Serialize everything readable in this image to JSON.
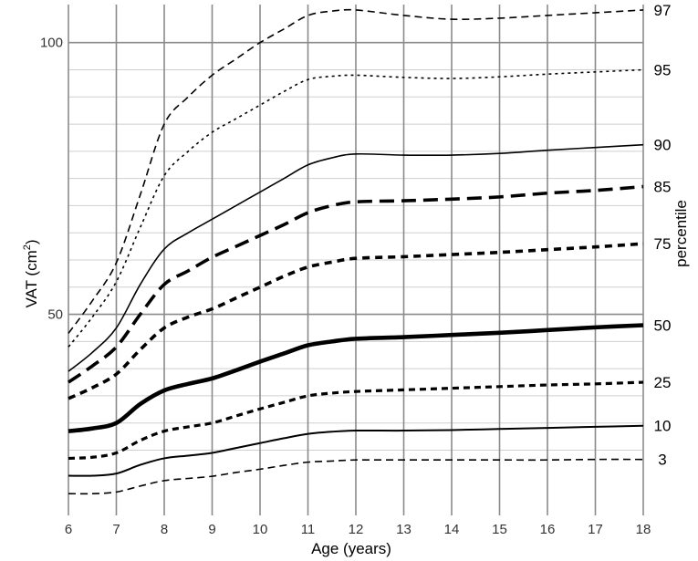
{
  "chart_data": {
    "type": "line",
    "xlabel": "Age (years)",
    "ylabel_main": "VAT (cm",
    "ylabel_sup": "2",
    "ylabel_close": ")",
    "right_label": "percentile",
    "xlim": [
      6,
      18
    ],
    "ylim": [
      13,
      107
    ],
    "xticks": [
      6,
      7,
      8,
      9,
      10,
      11,
      12,
      13,
      14,
      15,
      16,
      17,
      18
    ],
    "yticks": [
      50,
      100
    ],
    "y_minor_grid": [
      25,
      30,
      35,
      40,
      45,
      55,
      60,
      65,
      70,
      75,
      80,
      85,
      90,
      95
    ],
    "x": [
      6,
      6.5,
      7,
      7.5,
      8,
      8.5,
      9,
      9.5,
      10,
      10.5,
      11,
      11.5,
      12,
      13,
      14,
      15,
      16,
      17,
      18
    ],
    "series": [
      {
        "name": "97",
        "style": "dashed-thin",
        "values": [
          46.5,
          52.5,
          59.5,
          72,
          85,
          90,
          94,
          97,
          100,
          102.5,
          105,
          105.8,
          106,
          105,
          104.3,
          104.5,
          105,
          105.5,
          106
        ]
      },
      {
        "name": "95",
        "style": "dotted",
        "values": [
          44,
          49.5,
          56,
          66,
          75.5,
          80,
          83.5,
          86,
          88.5,
          91,
          93.2,
          93.8,
          94,
          93.6,
          93.4,
          93.7,
          94.2,
          94.6,
          95
        ]
      },
      {
        "name": "90",
        "style": "solid-thin",
        "values": [
          39.5,
          43,
          47.5,
          55.5,
          62,
          65,
          67.5,
          70,
          72.5,
          75,
          77.5,
          78.8,
          79.5,
          79.3,
          79.3,
          79.6,
          80.2,
          80.7,
          81.2
        ]
      },
      {
        "name": "85",
        "style": "longdash-bold",
        "values": [
          37.5,
          40.5,
          44,
          50,
          55.5,
          58,
          60.5,
          62.5,
          64.5,
          66.5,
          68.7,
          70,
          70.7,
          70.9,
          71.2,
          71.6,
          72.3,
          72.8,
          73.5
        ]
      },
      {
        "name": "75",
        "style": "dash-bold",
        "values": [
          34.5,
          36.5,
          39,
          43.5,
          47.5,
          49.5,
          51,
          53,
          55,
          57,
          58.7,
          59.6,
          60.3,
          60.6,
          61,
          61.4,
          61.9,
          62.4,
          63
        ]
      },
      {
        "name": "50",
        "style": "solid-bold",
        "values": [
          28.5,
          29,
          30,
          33.5,
          36,
          37.2,
          38.2,
          39.7,
          41.3,
          42.8,
          44.3,
          45,
          45.5,
          45.8,
          46.2,
          46.6,
          47.1,
          47.6,
          48
        ]
      },
      {
        "name": "25",
        "style": "dash-medium",
        "values": [
          23.5,
          23.7,
          24.5,
          26.8,
          28.5,
          29.3,
          30,
          31.3,
          32.6,
          33.8,
          35,
          35.5,
          35.8,
          36.1,
          36.4,
          36.7,
          37,
          37.2,
          37.5
        ]
      },
      {
        "name": "10",
        "style": "solid-medium",
        "values": [
          20.3,
          20.3,
          20.7,
          22.3,
          23.5,
          24,
          24.5,
          25.4,
          26.3,
          27.2,
          28,
          28.4,
          28.6,
          28.6,
          28.7,
          28.9,
          29.1,
          29.3,
          29.5
        ]
      },
      {
        "name": "3",
        "style": "dashed-thin",
        "values": [
          17,
          17,
          17.3,
          18.4,
          19.4,
          19.8,
          20.2,
          20.9,
          21.5,
          22.2,
          22.8,
          23,
          23.2,
          23.2,
          23.2,
          23.2,
          23.2,
          23.3,
          23.3
        ]
      }
    ],
    "percentile_labels": [
      "97",
      "95",
      "90",
      "85",
      "75",
      "50",
      "25",
      "10",
      "3"
    ],
    "grid": true
  }
}
